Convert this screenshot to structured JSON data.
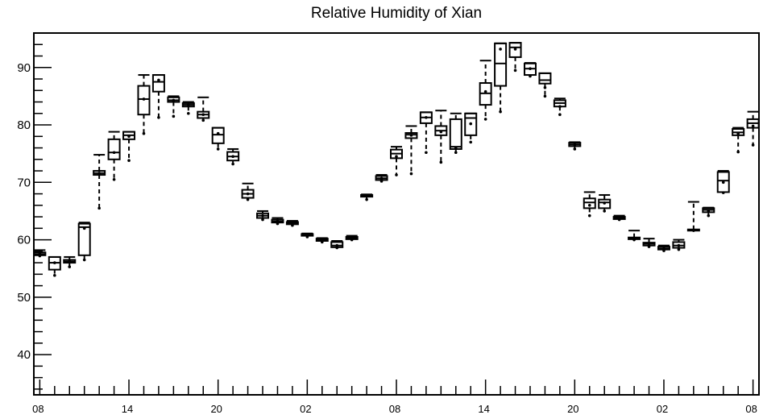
{
  "chart_data": {
    "type": "box",
    "title": "Relative Humidity of Xian",
    "xlabel": "",
    "ylabel": "",
    "ylim": [
      33,
      96
    ],
    "y_ticks": [
      40,
      50,
      60,
      70,
      80,
      90
    ],
    "x_tick_labels": [
      "08",
      "14",
      "20",
      "02",
      "08",
      "14",
      "20",
      "02",
      "08"
    ],
    "x_tick_hours": [
      0,
      6,
      12,
      18,
      24,
      30,
      36,
      42,
      48
    ],
    "grid": false,
    "boxes": [
      {
        "hour": 0,
        "whislo": 57.2,
        "q1": 57.3,
        "med": 57.5,
        "q3": 57.8,
        "whishi": 58.2,
        "mean": 57.6
      },
      {
        "hour": 1,
        "whislo": 53.8,
        "q1": 54.8,
        "med": 56.0,
        "q3": 57.0,
        "whishi": 57.0,
        "mean": 56.0
      },
      {
        "hour": 2,
        "whislo": 55.3,
        "q1": 56.0,
        "med": 56.2,
        "q3": 56.5,
        "whishi": 57.0,
        "mean": 56.2
      },
      {
        "hour": 3,
        "whislo": 56.5,
        "q1": 57.3,
        "med": 62.2,
        "q3": 62.8,
        "whishi": 63.0,
        "mean": 62.0
      },
      {
        "hour": 4,
        "whislo": 65.5,
        "q1": 71.3,
        "med": 71.6,
        "q3": 72.0,
        "whishi": 74.8,
        "mean": 71.6
      },
      {
        "hour": 5,
        "whislo": 70.5,
        "q1": 74.0,
        "med": 75.2,
        "q3": 77.5,
        "whishi": 78.8,
        "mean": 75.2
      },
      {
        "hour": 6,
        "whislo": 73.8,
        "q1": 77.5,
        "med": 78.2,
        "q3": 78.8,
        "whishi": 78.8,
        "mean": 78.0
      },
      {
        "hour": 7,
        "whislo": 78.5,
        "q1": 81.8,
        "med": 84.5,
        "q3": 86.8,
        "whishi": 88.7,
        "mean": 84.5
      },
      {
        "hour": 8,
        "whislo": 81.3,
        "q1": 85.8,
        "med": 87.5,
        "q3": 88.7,
        "whishi": 88.7,
        "mean": 87.8
      },
      {
        "hour": 9,
        "whislo": 81.5,
        "q1": 84.0,
        "med": 84.3,
        "q3": 84.8,
        "whishi": 85.0,
        "mean": 84.3
      },
      {
        "hour": 10,
        "whislo": 82.0,
        "q1": 83.2,
        "med": 83.5,
        "q3": 83.8,
        "whishi": 84.0,
        "mean": 83.5
      },
      {
        "hour": 11,
        "whislo": 80.8,
        "q1": 81.2,
        "med": 81.8,
        "q3": 82.3,
        "whishi": 84.8,
        "mean": 81.8
      },
      {
        "hour": 12,
        "whislo": 75.8,
        "q1": 76.8,
        "med": 78.3,
        "q3": 79.5,
        "whishi": 79.5,
        "mean": 78.5
      },
      {
        "hour": 13,
        "whislo": 73.2,
        "q1": 73.8,
        "med": 74.5,
        "q3": 75.3,
        "whishi": 75.8,
        "mean": 74.5
      },
      {
        "hour": 14,
        "whislo": 67.0,
        "q1": 67.3,
        "med": 68.0,
        "q3": 68.7,
        "whishi": 69.8,
        "mean": 68.0
      },
      {
        "hour": 15,
        "whislo": 63.5,
        "q1": 63.8,
        "med": 64.2,
        "q3": 64.6,
        "whishi": 65.0,
        "mean": 64.2
      },
      {
        "hour": 16,
        "whislo": 62.8,
        "q1": 63.0,
        "med": 63.2,
        "q3": 63.5,
        "whishi": 63.8,
        "mean": 63.2
      },
      {
        "hour": 17,
        "whislo": 62.5,
        "q1": 62.7,
        "med": 62.9,
        "q3": 63.1,
        "whishi": 63.3,
        "mean": 62.9
      },
      {
        "hour": 18,
        "whislo": 60.5,
        "q1": 60.7,
        "med": 60.8,
        "q3": 61.0,
        "whishi": 61.1,
        "mean": 60.8
      },
      {
        "hour": 19,
        "whislo": 59.6,
        "q1": 59.8,
        "med": 60.0,
        "q3": 60.2,
        "whishi": 60.3,
        "mean": 60.0
      },
      {
        "hour": 20,
        "whislo": 58.6,
        "q1": 58.7,
        "med": 59.0,
        "q3": 59.6,
        "whishi": 59.8,
        "mean": 59.0
      },
      {
        "hour": 21,
        "whislo": 60.0,
        "q1": 60.1,
        "med": 60.3,
        "q3": 60.5,
        "whishi": 60.7,
        "mean": 60.3
      },
      {
        "hour": 22,
        "whislo": 67.0,
        "q1": 67.5,
        "med": 67.7,
        "q3": 67.8,
        "whishi": 67.9,
        "mean": 67.7
      },
      {
        "hour": 23,
        "whislo": 70.2,
        "q1": 70.4,
        "med": 70.7,
        "q3": 71.1,
        "whishi": 71.3,
        "mean": 70.7
      },
      {
        "hour": 24,
        "whislo": 71.3,
        "q1": 74.2,
        "med": 75.0,
        "q3": 75.7,
        "whishi": 76.2,
        "mean": 74.5
      },
      {
        "hour": 25,
        "whislo": 71.5,
        "q1": 77.7,
        "med": 78.3,
        "q3": 78.6,
        "whishi": 79.8,
        "mean": 78.2
      },
      {
        "hour": 26,
        "whislo": 75.2,
        "q1": 80.3,
        "med": 81.3,
        "q3": 82.2,
        "whishi": 82.2,
        "mean": 81.3
      },
      {
        "hour": 27,
        "whislo": 73.5,
        "q1": 78.2,
        "med": 79.0,
        "q3": 79.8,
        "whishi": 82.5,
        "mean": 78.8
      },
      {
        "hour": 28,
        "whislo": 75.2,
        "q1": 75.8,
        "med": 76.2,
        "q3": 81.0,
        "whishi": 82.0,
        "mean": 76.0
      },
      {
        "hour": 29,
        "whislo": 77.0,
        "q1": 78.2,
        "med": 81.2,
        "q3": 82.0,
        "whishi": 82.0,
        "mean": 80.2
      },
      {
        "hour": 30,
        "whislo": 81.0,
        "q1": 83.5,
        "med": 85.5,
        "q3": 87.3,
        "whishi": 91.2,
        "mean": 85.8
      },
      {
        "hour": 31,
        "whislo": 82.3,
        "q1": 86.8,
        "med": 90.7,
        "q3": 94.2,
        "whishi": 94.2,
        "mean": 93.2
      },
      {
        "hour": 32,
        "whislo": 89.5,
        "q1": 91.8,
        "med": 93.5,
        "q3": 94.3,
        "whishi": 94.3,
        "mean": 93.2
      },
      {
        "hour": 33,
        "whislo": 88.5,
        "q1": 88.7,
        "med": 89.8,
        "q3": 90.7,
        "whishi": 90.8,
        "mean": 89.8
      },
      {
        "hour": 34,
        "whislo": 85.0,
        "q1": 87.2,
        "med": 87.8,
        "q3": 89.0,
        "whishi": 89.0,
        "mean": 86.5
      },
      {
        "hour": 35,
        "whislo": 81.8,
        "q1": 83.2,
        "med": 83.8,
        "q3": 84.3,
        "whishi": 84.6,
        "mean": 83.2
      },
      {
        "hour": 36,
        "whislo": 75.8,
        "q1": 76.3,
        "med": 76.6,
        "q3": 76.9,
        "whishi": 77.0,
        "mean": 76.6
      },
      {
        "hour": 37,
        "whislo": 64.2,
        "q1": 65.5,
        "med": 66.5,
        "q3": 67.2,
        "whishi": 68.3,
        "mean": 66.0
      },
      {
        "hour": 38,
        "whislo": 65.0,
        "q1": 65.5,
        "med": 66.5,
        "q3": 67.0,
        "whishi": 67.8,
        "mean": 66.4
      },
      {
        "hour": 39,
        "whislo": 63.5,
        "q1": 63.6,
        "med": 63.8,
        "q3": 64.0,
        "whishi": 64.2,
        "mean": 63.8
      },
      {
        "hour": 40,
        "whislo": 60.0,
        "q1": 60.1,
        "med": 60.3,
        "q3": 60.4,
        "whishi": 61.6,
        "mean": 60.3
      },
      {
        "hour": 41,
        "whislo": 58.8,
        "q1": 59.0,
        "med": 59.3,
        "q3": 59.5,
        "whishi": 60.2,
        "mean": 59.3
      },
      {
        "hour": 42,
        "whislo": 58.1,
        "q1": 58.3,
        "med": 58.5,
        "q3": 58.8,
        "whishi": 59.0,
        "mean": 58.5
      },
      {
        "hour": 43,
        "whislo": 58.3,
        "q1": 58.6,
        "med": 59.0,
        "q3": 59.6,
        "whishi": 60.0,
        "mean": 59.0
      },
      {
        "hour": 44,
        "whislo": 61.6,
        "q1": 61.6,
        "med": 61.7,
        "q3": 61.8,
        "whishi": 66.6,
        "mean": 61.7
      },
      {
        "hour": 45,
        "whislo": 64.2,
        "q1": 64.8,
        "med": 65.2,
        "q3": 65.5,
        "whishi": 65.6,
        "mean": 65.0
      },
      {
        "hour": 46,
        "whislo": 68.2,
        "q1": 68.3,
        "med": 70.3,
        "q3": 71.8,
        "whishi": 72.0,
        "mean": 70.0
      },
      {
        "hour": 47,
        "whislo": 75.3,
        "q1": 78.2,
        "med": 78.7,
        "q3": 79.3,
        "whishi": 79.5,
        "mean": 78.5
      },
      {
        "hour": 48,
        "whislo": 76.5,
        "q1": 79.5,
        "med": 80.3,
        "q3": 81.0,
        "whishi": 82.3,
        "mean": 79.8
      }
    ]
  }
}
